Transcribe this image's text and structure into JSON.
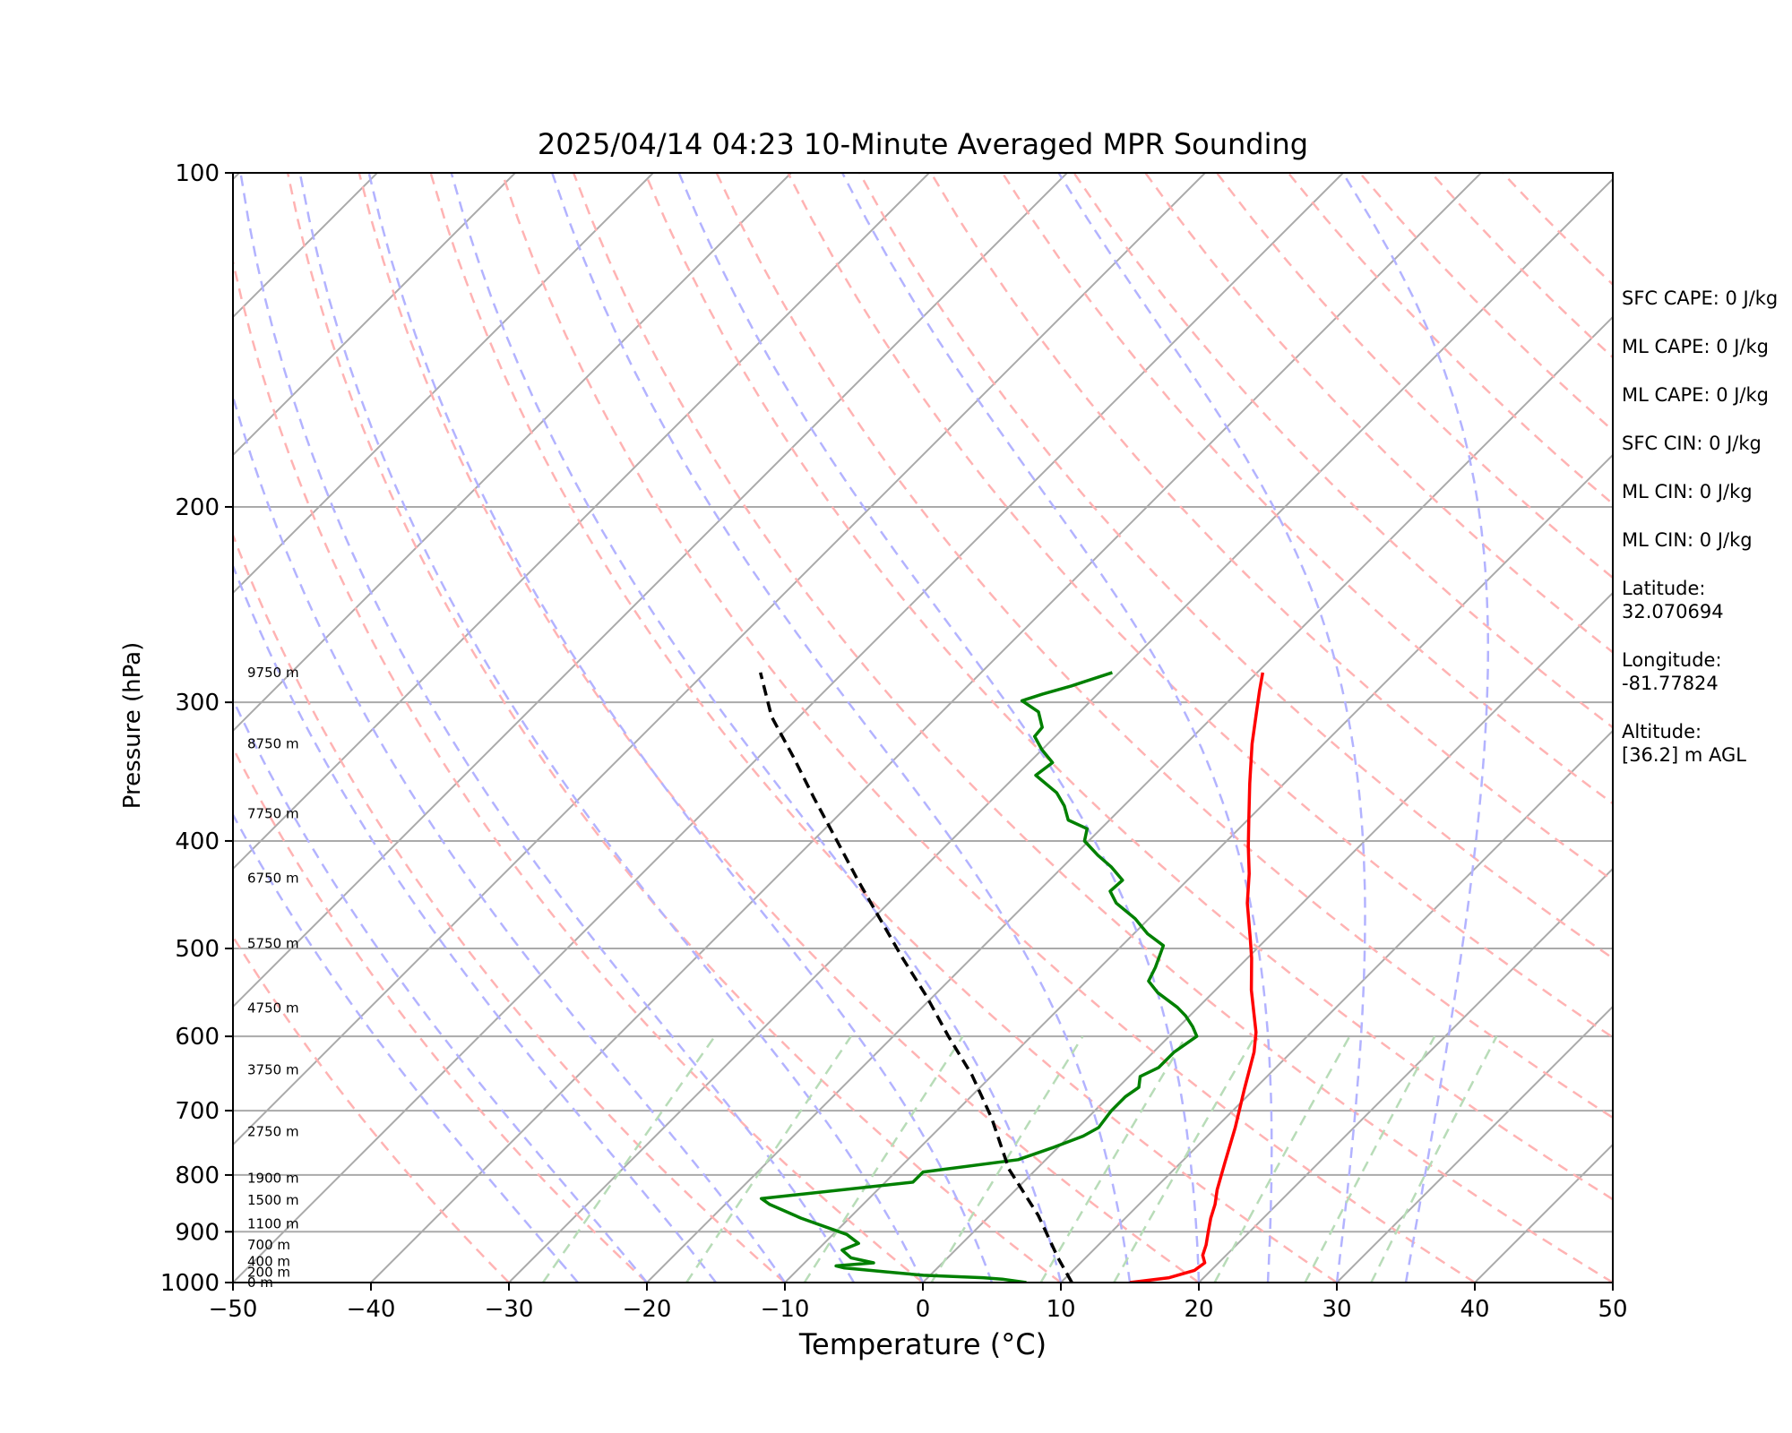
{
  "title": "2025/04/14 04:23 10-Minute Averaged MPR Sounding",
  "side_panel": {
    "stats": [
      "SFC CAPE: 0 J/kg",
      "ML CAPE: 0 J/kg",
      "ML CAPE: 0 J/kg",
      "SFC CIN: 0 J/kg",
      "ML CIN: 0 J/kg",
      "ML CIN: 0 J/kg"
    ],
    "latitude_label": "Latitude:",
    "latitude_value": "32.070694",
    "longitude_label": "Longitude:",
    "longitude_value": "-81.77824",
    "altitude_label": "Altitude:",
    "altitude_value": "[36.2] m AGL"
  },
  "chart_data": {
    "type": "line",
    "title": "2025/04/14 04:23 10-Minute Averaged MPR Sounding",
    "xlabel": "Temperature (°C)",
    "ylabel": "Pressure (hPa)",
    "xlim": [
      -50,
      50
    ],
    "ylim": [
      1000,
      100
    ],
    "y_scale": "log",
    "skew": "skew-T",
    "grid": true,
    "x_ticks": [
      -50,
      -40,
      -30,
      -20,
      -10,
      0,
      10,
      20,
      30,
      40,
      50
    ],
    "x_tick_labels": [
      "−50",
      "−40",
      "−30",
      "−20",
      "−10",
      "0",
      "10",
      "20",
      "30",
      "40",
      "50"
    ],
    "y_ticks": [
      1000,
      900,
      800,
      700,
      600,
      500,
      400,
      300,
      200,
      100
    ],
    "y_tick_labels": [
      "1000",
      "900",
      "800",
      "700",
      "600",
      "500",
      "400",
      "300",
      "200",
      "100"
    ],
    "height_labels": [
      {
        "text": "0 m",
        "p": 1000
      },
      {
        "text": "200 m",
        "p": 979
      },
      {
        "text": "400 m",
        "p": 957
      },
      {
        "text": "700 m",
        "p": 925
      },
      {
        "text": "1100 m",
        "p": 885
      },
      {
        "text": "1500 m",
        "p": 843
      },
      {
        "text": "1900 m",
        "p": 805
      },
      {
        "text": "2750 m",
        "p": 731
      },
      {
        "text": "3750 m",
        "p": 643
      },
      {
        "text": "4750 m",
        "p": 566
      },
      {
        "text": "5750 m",
        "p": 495
      },
      {
        "text": "6750 m",
        "p": 432
      },
      {
        "text": "7750 m",
        "p": 378
      },
      {
        "text": "8750 m",
        "p": 327
      },
      {
        "text": "9750 m",
        "p": 282
      }
    ],
    "series": [
      {
        "id": "temperature",
        "color": "#ff0000",
        "points": [
          [
            15.0,
            1000
          ],
          [
            17.5,
            990
          ],
          [
            18.8,
            975
          ],
          [
            19.0,
            960
          ],
          [
            18.3,
            945
          ],
          [
            17.8,
            925
          ],
          [
            17.0,
            900
          ],
          [
            16.2,
            875
          ],
          [
            15.5,
            850
          ],
          [
            14.6,
            825
          ],
          [
            13.2,
            780
          ],
          [
            11.4,
            725
          ],
          [
            9.3,
            670
          ],
          [
            7.3,
            620
          ],
          [
            6.0,
            595
          ],
          [
            2.6,
            545
          ],
          [
            0.3,
            510
          ],
          [
            -1.2,
            490
          ],
          [
            -4.0,
            455
          ],
          [
            -6.0,
            428
          ],
          [
            -8.0,
            405
          ],
          [
            -10.0,
            382
          ],
          [
            -12.5,
            355
          ],
          [
            -15.2,
            327
          ],
          [
            -17.0,
            308
          ],
          [
            -18.5,
            293
          ],
          [
            -19.6,
            282
          ]
        ]
      },
      {
        "id": "dewpoint",
        "color": "#008000",
        "points": [
          [
            7.5,
            1000
          ],
          [
            5.5,
            993
          ],
          [
            4.0,
            990
          ],
          [
            -0.5,
            985
          ],
          [
            -3.5,
            978
          ],
          [
            -6.8,
            970
          ],
          [
            -7.5,
            966
          ],
          [
            -5.0,
            960
          ],
          [
            -7.0,
            950
          ],
          [
            -8.2,
            935
          ],
          [
            -7.5,
            922
          ],
          [
            -9.0,
            905
          ],
          [
            -13.5,
            875
          ],
          [
            -16.8,
            850
          ],
          [
            -17.8,
            840
          ],
          [
            -8.0,
            812
          ],
          [
            -8.0,
            795
          ],
          [
            -2.0,
            775
          ],
          [
            -0.3,
            755
          ],
          [
            1.0,
            738
          ],
          [
            1.5,
            725
          ],
          [
            1.2,
            700
          ],
          [
            1.2,
            680
          ],
          [
            1.5,
            667
          ],
          [
            0.8,
            652
          ],
          [
            1.5,
            640
          ],
          [
            1.5,
            620
          ],
          [
            2.0,
            600
          ],
          [
            1.0,
            588
          ],
          [
            -0.3,
            575
          ],
          [
            -1.5,
            565
          ],
          [
            -4.0,
            548
          ],
          [
            -5.5,
            535
          ],
          [
            -6.0,
            520
          ],
          [
            -7.0,
            497
          ],
          [
            -9.0,
            485
          ],
          [
            -11.0,
            470
          ],
          [
            -13.5,
            455
          ],
          [
            -14.8,
            444
          ],
          [
            -14.7,
            434
          ],
          [
            -16.5,
            422
          ],
          [
            -18.3,
            412
          ],
          [
            -20.3,
            400
          ],
          [
            -21.0,
            390
          ],
          [
            -23.0,
            383
          ],
          [
            -24.3,
            372
          ],
          [
            -25.8,
            362
          ],
          [
            -28.6,
            349
          ],
          [
            -28.3,
            340
          ],
          [
            -30.0,
            331
          ],
          [
            -31.5,
            322
          ],
          [
            -31.6,
            316
          ],
          [
            -33.0,
            306
          ],
          [
            -35.0,
            299
          ],
          [
            -34.0,
            295
          ],
          [
            -32.5,
            290
          ],
          [
            -30.5,
            282
          ]
        ]
      },
      {
        "id": "parcel",
        "color": "#000000",
        "style": "dashed",
        "points": [
          [
            10.8,
            1000
          ],
          [
            8.0,
            950
          ],
          [
            3.5,
            870
          ],
          [
            -2.0,
            790
          ],
          [
            -7.0,
            710
          ],
          [
            -11.5,
            650
          ],
          [
            -16.0,
            600
          ],
          [
            -20.5,
            552
          ],
          [
            -25.0,
            510
          ],
          [
            -29.5,
            470
          ],
          [
            -34.0,
            433
          ],
          [
            -38.5,
            398
          ],
          [
            -43.0,
            366
          ],
          [
            -47.5,
            336
          ],
          [
            -52.0,
            309
          ],
          [
            -56.0,
            282
          ]
        ]
      }
    ],
    "reference_lines": {
      "isotherms_c": [
        -140,
        -130,
        -120,
        -110,
        -100,
        -90,
        -80,
        -70,
        -60,
        -50,
        -40,
        -30,
        -20,
        -10,
        0,
        10,
        20,
        30,
        40,
        50
      ],
      "dry_adiabats_c_at_1000": [
        -30,
        -20,
        -10,
        0,
        10,
        20,
        30,
        40,
        50,
        60,
        70,
        80,
        90,
        100,
        110,
        120,
        130,
        140,
        150,
        160,
        170,
        180
      ],
      "moist_adiabats_c_at_1000": [
        -25,
        -20,
        -15,
        -10,
        -5,
        0,
        5,
        10,
        15,
        20,
        25,
        30,
        35
      ],
      "mixing_ratios_gkg": [
        0.4,
        1,
        2,
        4,
        7,
        10,
        16,
        24,
        32
      ]
    },
    "colors": {
      "isotherm": "#aaaaaa",
      "dry_adiabat": "#ffb3b3",
      "moist_adiabat": "#b3b3ff",
      "mixing_ratio": "#b8dcb8",
      "temperature": "#ff0000",
      "dewpoint": "#008000",
      "parcel": "#000000"
    }
  }
}
